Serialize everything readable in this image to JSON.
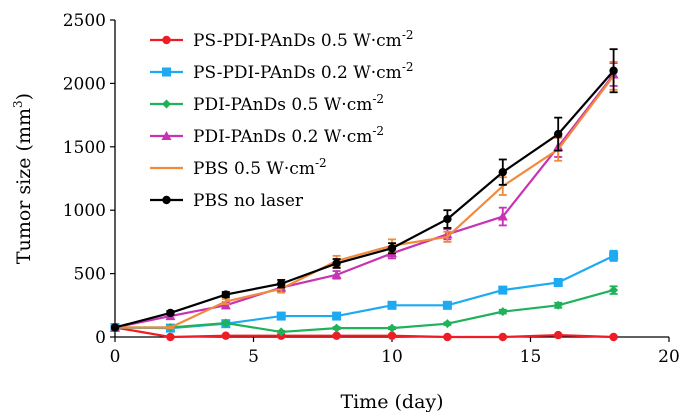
{
  "chart_data": {
    "type": "line",
    "xlabel": "Time (day)",
    "ylabel": "Tumor size (mm",
    "ylabel_sup": "3",
    "ylabel_end": ")",
    "xlim": [
      0,
      20
    ],
    "ylim": [
      0,
      2500
    ],
    "xticks": [
      0,
      5,
      10,
      15,
      20
    ],
    "yticks": [
      0,
      500,
      1000,
      1500,
      2000,
      2500
    ],
    "grid": false,
    "legend_position": "top-left",
    "series": [
      {
        "name": "PS-PDI-PAnDs 0.5 W·cm",
        "name_sup": "-2",
        "color": "#ee1c25",
        "marker": "circle",
        "x": [
          0,
          2,
          4,
          6,
          8,
          10,
          12,
          14,
          16,
          18
        ],
        "y": [
          75,
          0,
          10,
          10,
          10,
          10,
          0,
          0,
          15,
          0
        ],
        "err": [
          5,
          5,
          5,
          5,
          5,
          5,
          5,
          5,
          5,
          5
        ]
      },
      {
        "name": "PS-PDI-PAnDs 0.2 W·cm",
        "name_sup": "-2",
        "color": "#1eaaf1",
        "marker": "square",
        "x": [
          0,
          2,
          4,
          6,
          8,
          10,
          12,
          14,
          16,
          18
        ],
        "y": [
          75,
          70,
          105,
          165,
          165,
          250,
          250,
          370,
          430,
          640
        ],
        "err": [
          5,
          8,
          10,
          12,
          12,
          15,
          15,
          20,
          25,
          40
        ]
      },
      {
        "name": "PDI-PAnDs 0.5 W·cm",
        "name_sup": "-2",
        "color": "#1fb25a",
        "marker": "diamond",
        "x": [
          0,
          2,
          4,
          6,
          8,
          10,
          12,
          14,
          16,
          18
        ],
        "y": [
          75,
          75,
          110,
          40,
          70,
          70,
          105,
          200,
          250,
          370
        ],
        "err": [
          5,
          8,
          10,
          8,
          8,
          8,
          10,
          15,
          20,
          30
        ]
      },
      {
        "name": "PDI-PAnDs 0.2 W·cm",
        "name_sup": "-2",
        "color": "#c832b4",
        "marker": "triangle",
        "x": [
          0,
          2,
          4,
          6,
          8,
          10,
          12,
          14,
          16,
          18
        ],
        "y": [
          75,
          165,
          250,
          390,
          490,
          660,
          810,
          950,
          1500,
          2070
        ],
        "err": [
          5,
          20,
          25,
          30,
          30,
          40,
          40,
          70,
          80,
          90
        ]
      },
      {
        "name": "PBS 0.5 W·cm",
        "name_sup": "-2",
        "color": "#f08a3c",
        "marker": "none",
        "x": [
          0,
          2,
          4,
          6,
          8,
          10,
          12,
          14,
          16,
          18
        ],
        "y": [
          75,
          75,
          280,
          380,
          600,
          720,
          790,
          1190,
          1480,
          2060
        ],
        "err": [
          5,
          8,
          20,
          30,
          40,
          50,
          40,
          70,
          90,
          110
        ]
      },
      {
        "name": "PBS no laser",
        "name_sup": "",
        "color": "#000000",
        "marker": "circle",
        "x": [
          0,
          2,
          4,
          6,
          8,
          10,
          12,
          14,
          16,
          18
        ],
        "y": [
          75,
          190,
          335,
          420,
          580,
          700,
          930,
          1300,
          1600,
          2100
        ],
        "err": [
          5,
          15,
          20,
          30,
          35,
          40,
          70,
          100,
          130,
          170
        ]
      }
    ]
  }
}
